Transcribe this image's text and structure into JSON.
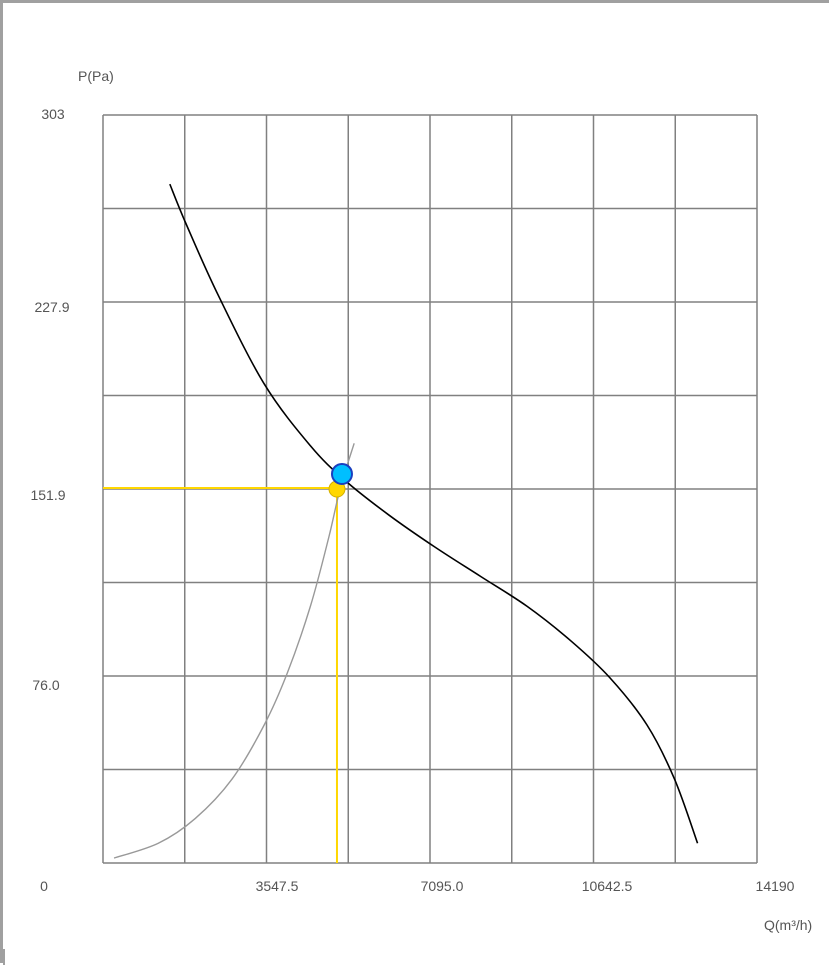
{
  "chart_data": {
    "type": "line",
    "title": "",
    "ylabel": "P(Pa)",
    "xlabel": "Q(m³/h)",
    "xlim": [
      0,
      14190
    ],
    "ylim": [
      0,
      303
    ],
    "x_tick_labels": [
      "0",
      "3547.5",
      "7095.0",
      "10642.5",
      "14190"
    ],
    "y_tick_labels": [
      "303",
      "227.9",
      "151.9",
      "76.0"
    ],
    "grid": true,
    "series": [
      {
        "color": "#000000",
        "points": [
          [
            1450,
            275
          ],
          [
            1800,
            259
          ],
          [
            2500,
            230
          ],
          [
            3500,
            194
          ],
          [
            4500,
            169
          ],
          [
            5250,
            155
          ],
          [
            6200,
            141
          ],
          [
            7200,
            128
          ],
          [
            8200,
            116
          ],
          [
            9200,
            104
          ],
          [
            10150,
            90
          ],
          [
            11000,
            75
          ],
          [
            11800,
            56
          ],
          [
            12400,
            34
          ],
          [
            12900,
            8
          ]
        ]
      },
      {
        "color": "#999999",
        "points": [
          [
            240,
            2
          ],
          [
            1200,
            8
          ],
          [
            2000,
            18
          ],
          [
            2800,
            34
          ],
          [
            3500,
            56
          ],
          [
            4000,
            77
          ],
          [
            4500,
            104
          ],
          [
            4900,
            132
          ],
          [
            5150,
            152
          ],
          [
            5450,
            170
          ]
        ]
      }
    ],
    "operating_point": {
      "x": 5120,
      "y": 158,
      "color": "#00bfff"
    },
    "selected_point": {
      "x": 5120,
      "y": 151.9,
      "color": "#ffd700"
    }
  }
}
